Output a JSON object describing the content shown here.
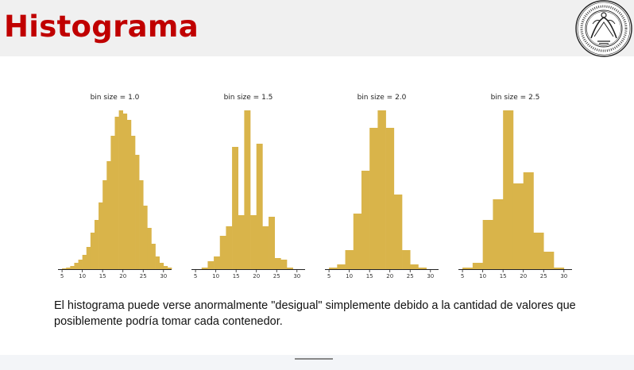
{
  "slide": {
    "title": "Histograma",
    "caption": "El histograma puede verse anormalmente \"desigual\" simplemente debido a la cantidad de valores que posiblemente podría tomar cada contenedor."
  },
  "colors": {
    "bar": "#d9b44a",
    "title": "#c00000",
    "axis": "#222222"
  },
  "logo": {
    "name": "university-seal"
  },
  "chart_data": [
    {
      "type": "bar",
      "title": "bin size = 1.0",
      "xlabel": "",
      "ylabel": "",
      "xlim": [
        4,
        32
      ],
      "xticks": [
        5,
        10,
        15,
        20,
        25,
        30
      ],
      "bin_start": 5,
      "bin_width": 1.0,
      "values": [
        0.5,
        1,
        2,
        4,
        6,
        9,
        14,
        23,
        31,
        42,
        56,
        68,
        84,
        96,
        100,
        98,
        94,
        84,
        72,
        56,
        40,
        26,
        16,
        8,
        4,
        2,
        1
      ]
    },
    {
      "type": "bar",
      "title": "bin size = 1.5",
      "xlabel": "",
      "ylabel": "",
      "xlim": [
        4,
        32
      ],
      "xticks": [
        5,
        10,
        15,
        20,
        25,
        30
      ],
      "bin_start": 5,
      "bin_width": 1.5,
      "values": [
        0,
        1,
        5,
        8,
        21,
        27,
        77,
        34,
        100,
        34,
        79,
        27,
        33,
        7,
        6,
        1,
        0
      ]
    },
    {
      "type": "bar",
      "title": "bin size = 2.0",
      "xlabel": "",
      "ylabel": "",
      "xlim": [
        4,
        32
      ],
      "xticks": [
        5,
        10,
        15,
        20,
        25,
        30
      ],
      "bin_start": 5,
      "bin_width": 2.0,
      "values": [
        1,
        3,
        12,
        35,
        62,
        89,
        100,
        89,
        47,
        12,
        3,
        1,
        0
      ]
    },
    {
      "type": "bar",
      "title": "bin size = 2.5",
      "xlabel": "",
      "ylabel": "",
      "xlim": [
        4,
        32
      ],
      "xticks": [
        5,
        10,
        15,
        20,
        25,
        30
      ],
      "bin_start": 5,
      "bin_width": 2.5,
      "values": [
        1,
        4,
        31,
        44,
        100,
        54,
        61,
        23,
        11,
        1
      ]
    }
  ]
}
